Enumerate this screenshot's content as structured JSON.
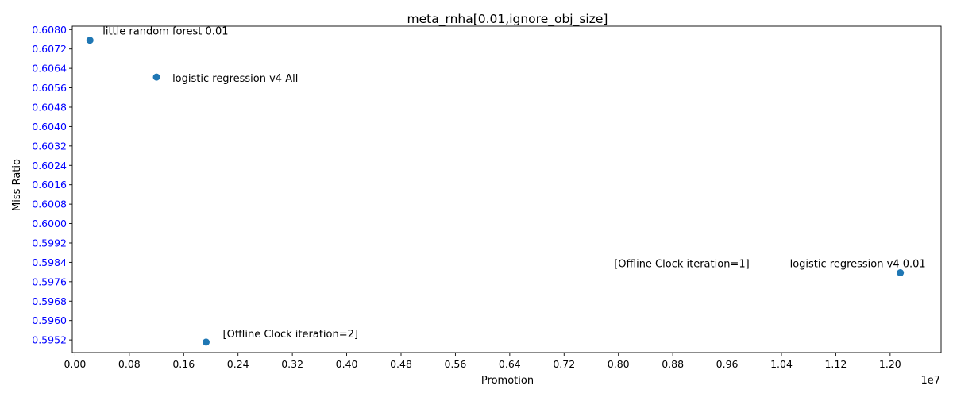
{
  "chart_data": {
    "type": "scatter",
    "title": "meta_rnha[0.01,ignore_obj_size]",
    "xlabel": "Promotion",
    "ylabel": "Miss Ratio",
    "x_offset_label": "1e7",
    "xlim": [
      -40000,
      12750000
    ],
    "ylim": [
      0.59468,
      0.60814
    ],
    "x_ticks": [
      0,
      800000,
      1600000,
      2400000,
      3200000,
      4000000,
      4800000,
      5600000,
      6400000,
      7200000,
      8000000,
      8800000,
      9600000,
      10400000,
      11200000,
      12000000
    ],
    "x_tick_labels": [
      "0.00",
      "0.08",
      "0.16",
      "0.24",
      "0.32",
      "0.40",
      "0.48",
      "0.56",
      "0.64",
      "0.72",
      "0.80",
      "0.88",
      "0.96",
      "1.04",
      "1.12",
      "1.20"
    ],
    "y_ticks": [
      0.5952,
      0.596,
      0.5968,
      0.5976,
      0.5984,
      0.5992,
      0.6,
      0.6008,
      0.6016,
      0.6024,
      0.6032,
      0.604,
      0.6048,
      0.6056,
      0.6064,
      0.6072,
      0.608
    ],
    "y_tick_labels": [
      "0.5952",
      "0.5960",
      "0.5968",
      "0.5976",
      "0.5984",
      "0.5992",
      "0.6000",
      "0.6008",
      "0.6016",
      "0.6024",
      "0.6032",
      "0.6040",
      "0.6048",
      "0.6056",
      "0.6064",
      "0.6072",
      "0.6080"
    ],
    "y_tick_color": "#0000ff",
    "marker_color": "#1f77b4",
    "points": [
      {
        "x": 220000,
        "y": 0.60756,
        "label": "little random forest 0.01"
      },
      {
        "x": 1200000,
        "y": 0.60604,
        "label": "logistic regression v4 All"
      },
      {
        "x": 12150000,
        "y": 0.59797,
        "label": "logistic regression v4 0.01"
      },
      {
        "x": 1930000,
        "y": 0.59511,
        "label": "[Offline Clock iteration=2]"
      }
    ],
    "extra_annotations": [
      {
        "x": 12150000,
        "y": 0.59797,
        "label": "[Offline Clock iteration=1]"
      }
    ]
  }
}
